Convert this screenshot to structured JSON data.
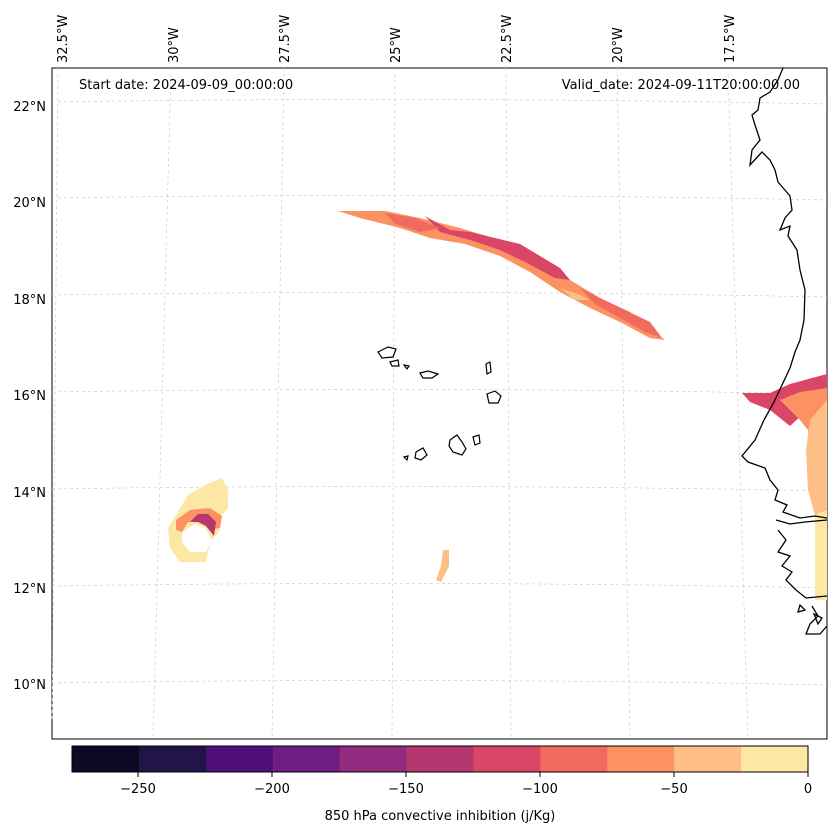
{
  "header": {
    "start_date": "Start date: 2024-09-09_00:00:00",
    "valid_date": "Valid_date: 2024-09-11T20:00:00.00"
  },
  "axes": {
    "lon_labels": [
      "32.5°W",
      "30°W",
      "27.5°W",
      "25°W",
      "22.5°W",
      "20°W",
      "17.5°W"
    ],
    "lat_labels": [
      "22°N",
      "20°N",
      "18°N",
      "16°N",
      "14°N",
      "12°N",
      "10°N"
    ]
  },
  "colorbar": {
    "label": "850 hPa convective inhibition (j/Kg)",
    "ticks": [
      "−250",
      "−200",
      "−150",
      "−100",
      "−50",
      "0"
    ],
    "colors": [
      "#0b0924",
      "#211449",
      "#4e0f7a",
      "#6e1d80",
      "#922a7f",
      "#b6366f",
      "#da4766",
      "#f06a5e",
      "#fc9161",
      "#febf84",
      "#fde7a4"
    ]
  }
}
